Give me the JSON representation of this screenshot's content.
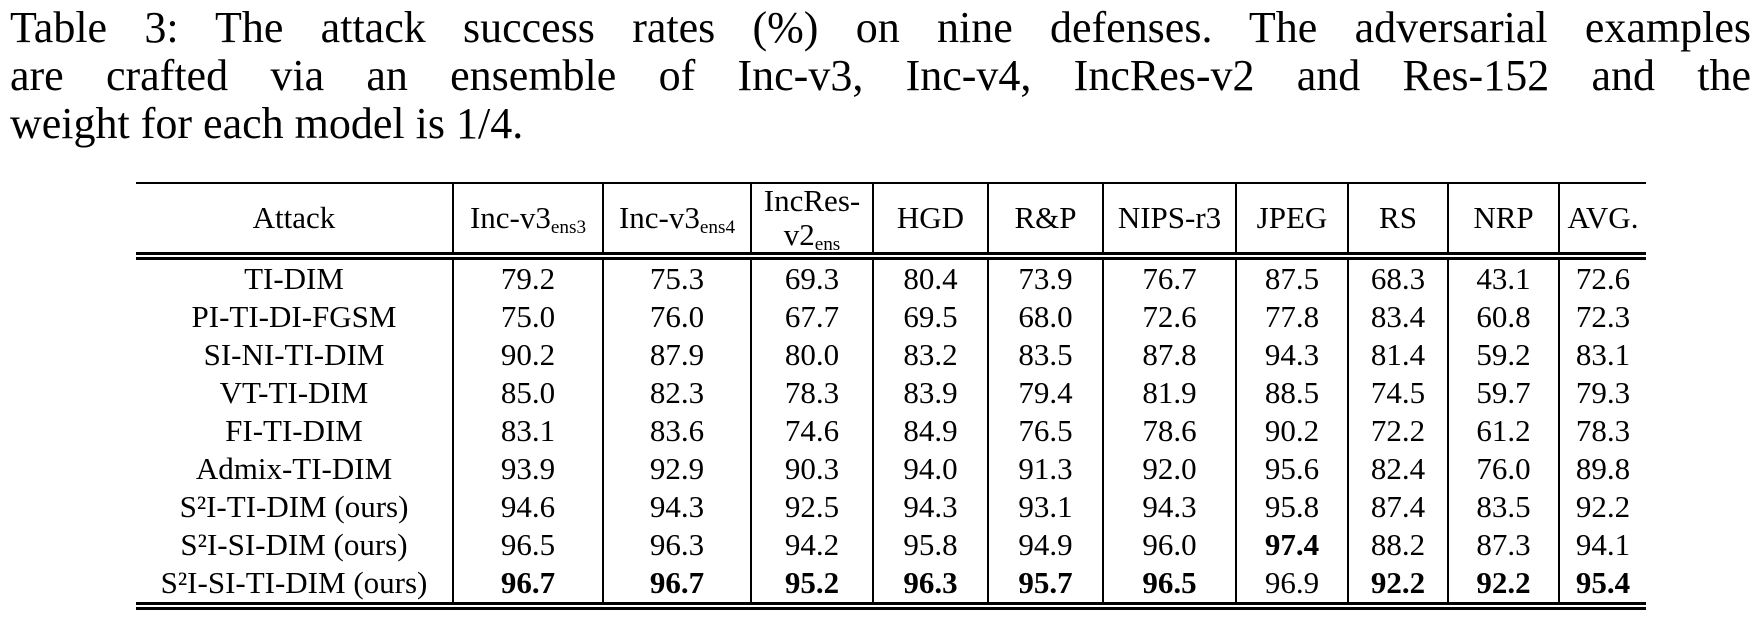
{
  "caption": {
    "lines": [
      "Table 3: The attack success rates (%) on nine defenses. The adversarial examples",
      "are crafted via an ensemble of Inc-v3, Inc-v4, IncRes-v2 and Res-152 and the",
      "weight for each model is 1/4."
    ]
  },
  "table": {
    "columns": [
      {
        "id": "attack",
        "label": "Attack"
      },
      {
        "id": "inc-v3-ens3",
        "label": "Inc-v3",
        "sub": "ens3"
      },
      {
        "id": "inc-v3-ens4",
        "label": "Inc-v3",
        "sub": "ens4"
      },
      {
        "id": "incres-v2-ens",
        "label": "IncRes-",
        "label2": "v2",
        "sub": "ens"
      },
      {
        "id": "hgd",
        "label": "HGD"
      },
      {
        "id": "r-and-p",
        "label": "R&P"
      },
      {
        "id": "nips-r3",
        "label": "NIPS-r3"
      },
      {
        "id": "jpeg",
        "label": "JPEG"
      },
      {
        "id": "rs",
        "label": "RS"
      },
      {
        "id": "nrp",
        "label": "NRP"
      },
      {
        "id": "avg",
        "label": "AVG."
      }
    ],
    "rows": [
      {
        "attack": "TI-DIM",
        "values": [
          "79.2",
          "75.3",
          "69.3",
          "80.4",
          "73.9",
          "76.7",
          "87.5",
          "68.3",
          "43.1",
          "72.6"
        ],
        "bold": []
      },
      {
        "attack": "PI-TI-DI-FGSM",
        "values": [
          "75.0",
          "76.0",
          "67.7",
          "69.5",
          "68.0",
          "72.6",
          "77.8",
          "83.4",
          "60.8",
          "72.3"
        ],
        "bold": []
      },
      {
        "attack": "SI-NI-TI-DIM",
        "values": [
          "90.2",
          "87.9",
          "80.0",
          "83.2",
          "83.5",
          "87.8",
          "94.3",
          "81.4",
          "59.2",
          "83.1"
        ],
        "bold": []
      },
      {
        "attack": "VT-TI-DIM",
        "values": [
          "85.0",
          "82.3",
          "78.3",
          "83.9",
          "79.4",
          "81.9",
          "88.5",
          "74.5",
          "59.7",
          "79.3"
        ],
        "bold": []
      },
      {
        "attack": "FI-TI-DIM",
        "values": [
          "83.1",
          "83.6",
          "74.6",
          "84.9",
          "76.5",
          "78.6",
          "90.2",
          "72.2",
          "61.2",
          "78.3"
        ],
        "bold": []
      },
      {
        "attack": "Admix-TI-DIM",
        "values": [
          "93.9",
          "92.9",
          "90.3",
          "94.0",
          "91.3",
          "92.0",
          "95.6",
          "82.4",
          "76.0",
          "89.8"
        ],
        "bold": []
      },
      {
        "attack": "S²I-TI-DIM (ours)",
        "values": [
          "94.6",
          "94.3",
          "92.5",
          "94.3",
          "93.1",
          "94.3",
          "95.8",
          "87.4",
          "83.5",
          "92.2"
        ],
        "bold": []
      },
      {
        "attack": "S²I-SI-DIM (ours)",
        "values": [
          "96.5",
          "96.3",
          "94.2",
          "95.8",
          "94.9",
          "96.0",
          "97.4",
          "88.2",
          "87.3",
          "94.1"
        ],
        "bold": [
          6
        ]
      },
      {
        "attack": "S²I-SI-TI-DIM (ours)",
        "values": [
          "96.7",
          "96.7",
          "95.2",
          "96.3",
          "95.7",
          "96.5",
          "96.9",
          "92.2",
          "92.2",
          "95.4"
        ],
        "bold": [
          0,
          1,
          2,
          3,
          4,
          5,
          7,
          8,
          9
        ]
      }
    ]
  }
}
